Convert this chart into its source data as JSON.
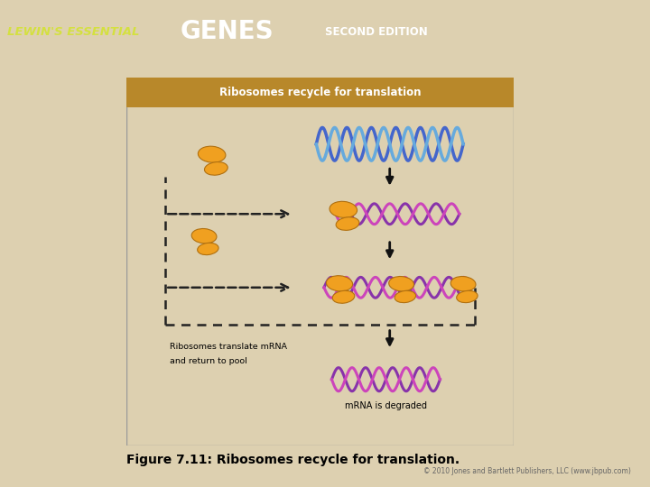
{
  "title": "Figure 7.11: Ribosomes recycle for translation.",
  "header_text": "LEWIN'S ESSENTIAL",
  "header_genes": "GENES",
  "header_edition": "SECOND EDITION",
  "header_bg": "#5a9bbf",
  "header_text_color": "#d4e040",
  "box_title": "Ribosomes recycle for translation",
  "box_title_bg": "#b8882a",
  "box_bg": "#d8e4ee",
  "background_color": "#ddd0b0",
  "mrna_color_top": "#8833aa",
  "mrna_color_bot": "#cc44bb",
  "dna_color1": "#4466cc",
  "dna_color2": "#66aadd",
  "dna_conn": "#88aaee",
  "ribosome_color": "#f0a020",
  "ribosome_edge": "#b07010",
  "arrow_color": "#111111",
  "dashed_color": "#222222",
  "label_text1": "Ribosomes translate mRNA",
  "label_text2": "and return to pool",
  "label_mrna_degraded": "mRNA is degraded",
  "copyright": "© 2010 Jones and Bartlett Publishers, LLC (www.jbpub.com)",
  "figure_width": 7.2,
  "figure_height": 5.4,
  "dpi": 100
}
